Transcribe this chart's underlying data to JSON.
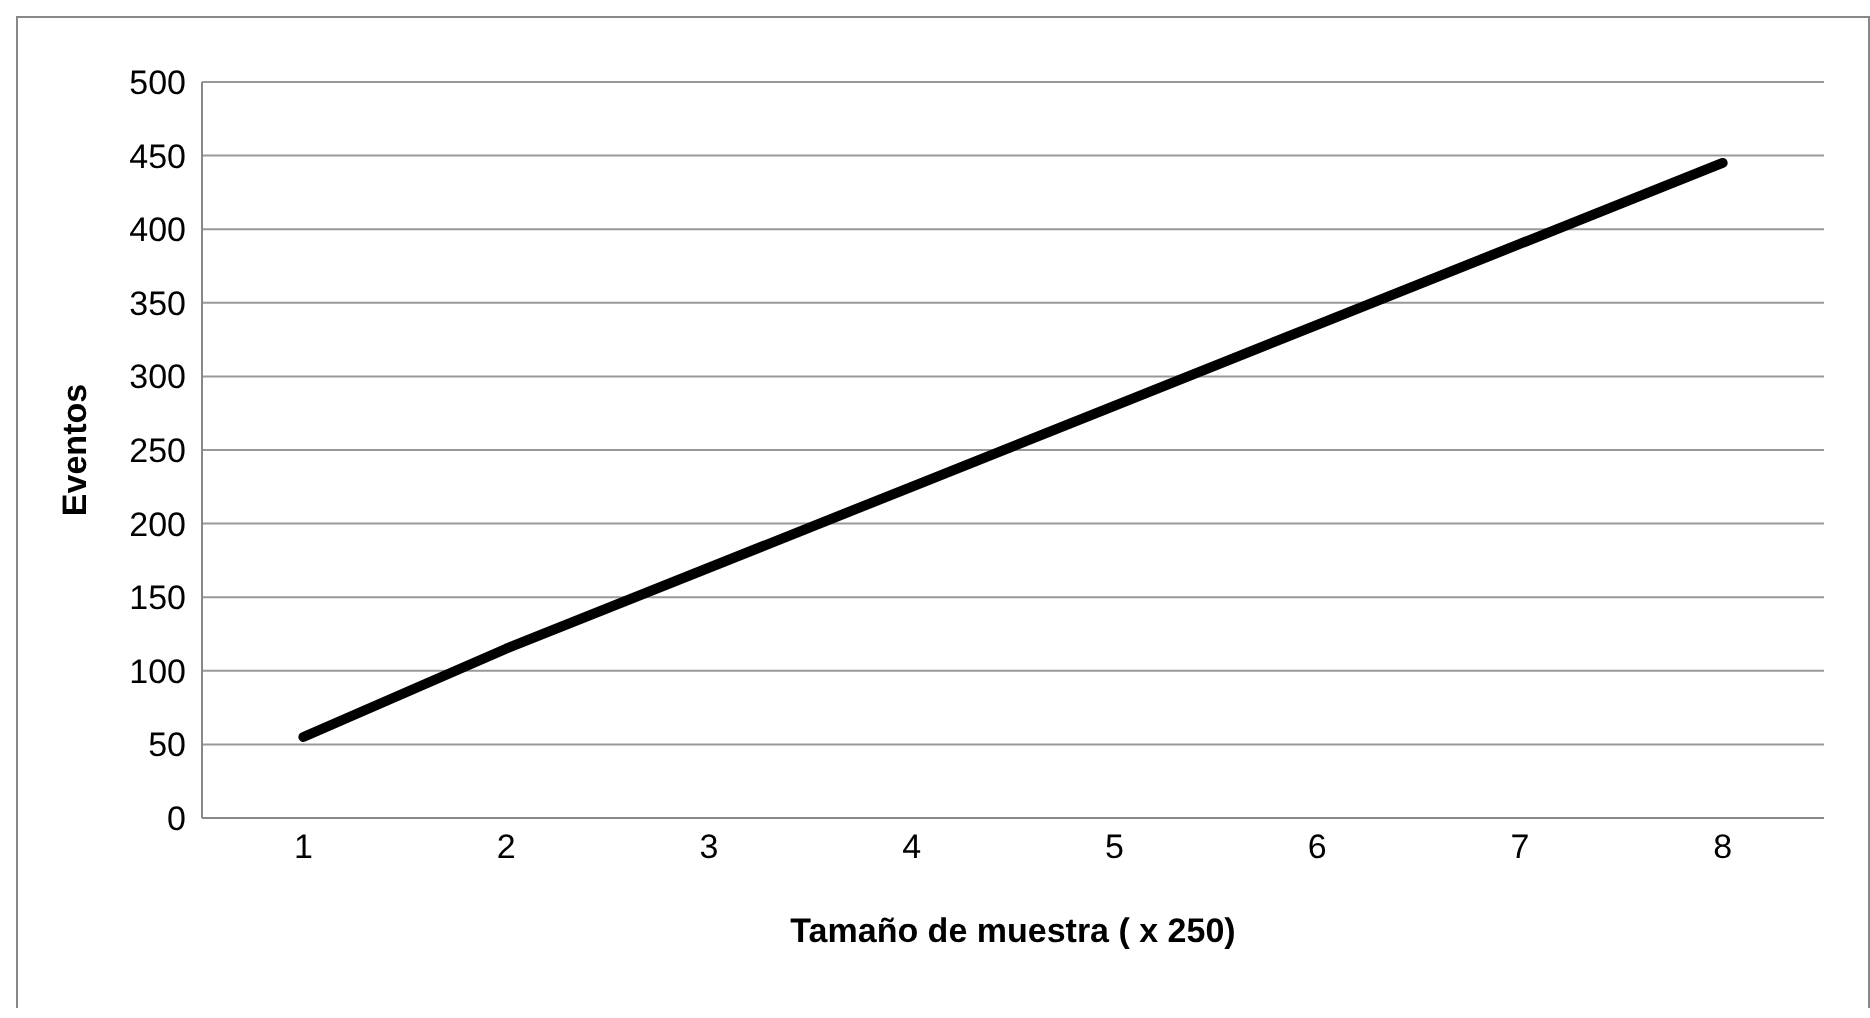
{
  "chart_data": {
    "type": "line",
    "xlabel": "Tamaño de muestra ( x 250)",
    "ylabel": "Eventos",
    "categories": [
      "1",
      "2",
      "3",
      "4",
      "5",
      "6",
      "7",
      "8"
    ],
    "series": [
      {
        "color": "#000000",
        "values": [
          55,
          115,
          170,
          225,
          280,
          335,
          390,
          445
        ]
      }
    ],
    "ylim": [
      0,
      500
    ],
    "yticks": [
      0,
      50,
      100,
      150,
      200,
      250,
      300,
      350,
      400,
      450,
      500
    ],
    "grid": "y",
    "legend": false,
    "marker": "none",
    "line_style": "solid"
  }
}
